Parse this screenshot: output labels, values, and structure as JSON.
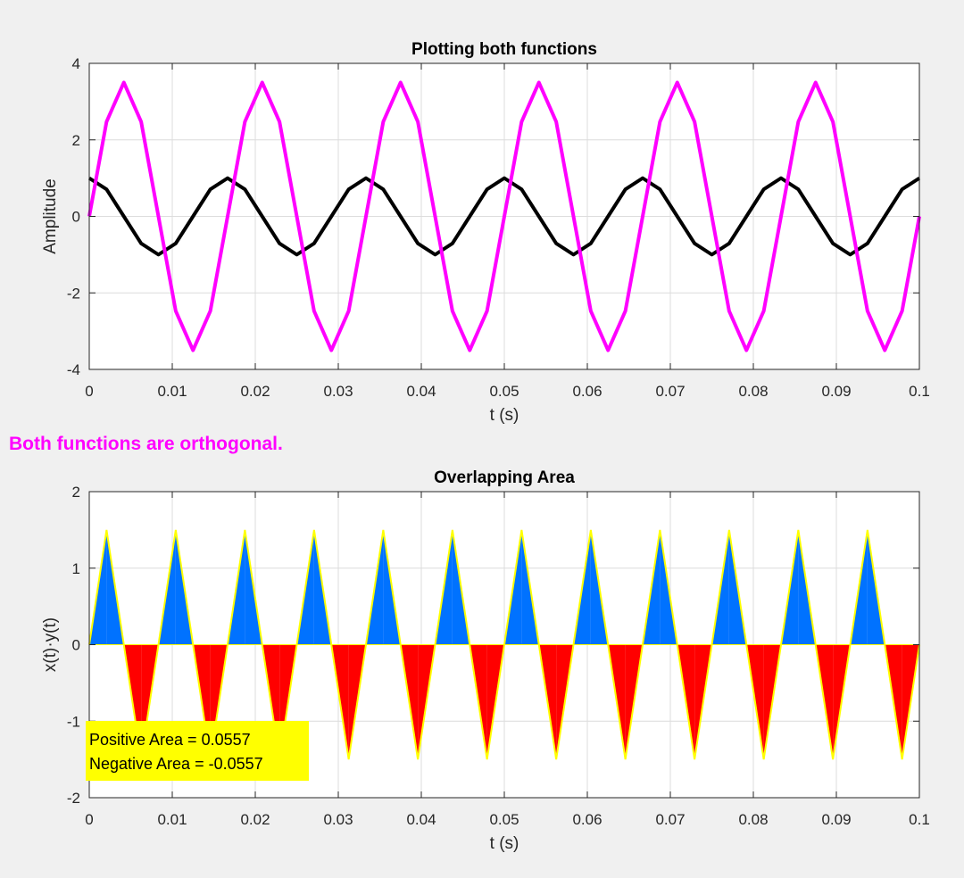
{
  "status_message": "Both functions are orthogonal.",
  "colors": {
    "status_text": "#ff00ff",
    "x_series": "#000000",
    "y_series": "#ff00ff",
    "positive_fill": "#0072ff",
    "negative_fill": "#ff0000",
    "fill_edge": "#ffff00",
    "annotation_bg": "#ffff00"
  },
  "area_annotation": {
    "positive": "Positive Area = 0.0557",
    "negative": "Negative Area = -0.0557"
  },
  "chart_data": [
    {
      "type": "line",
      "title": "Plotting both functions",
      "xlabel": "t (s)",
      "ylabel": "Amplitude",
      "xlim": [
        0,
        0.1
      ],
      "ylim": [
        -4,
        4
      ],
      "xticks": [
        "0",
        "0.01",
        "0.02",
        "0.03",
        "0.04",
        "0.05",
        "0.06",
        "0.07",
        "0.08",
        "0.09",
        "0.1"
      ],
      "yticks": [
        "-4",
        "-2",
        "0",
        "2",
        "4"
      ],
      "grid": true,
      "sample_step": 0.00208333,
      "series": [
        {
          "function": "cos",
          "amplitude": 1,
          "frequency_hz": 60,
          "color": "#000000"
        },
        {
          "function": "sin",
          "amplitude": 3.5,
          "frequency_hz": 60,
          "color": "#ff00ff"
        }
      ]
    },
    {
      "type": "area",
      "title": "Overlapping Area",
      "xlabel": "t (s)",
      "ylabel": "x(t)·y(t)",
      "xlim": [
        0,
        0.1
      ],
      "ylim": [
        -2,
        2
      ],
      "xticks": [
        "0",
        "0.01",
        "0.02",
        "0.03",
        "0.04",
        "0.05",
        "0.06",
        "0.07",
        "0.08",
        "0.09",
        "0.1"
      ],
      "yticks": [
        "-2",
        "-1",
        "0",
        "1",
        "2"
      ],
      "grid": true,
      "sample_step": 0.00208333,
      "series": [
        {
          "function": "product",
          "amplitude": 1.75,
          "frequency_hz": 120,
          "positive_color": "#0072ff",
          "negative_color": "#ff0000",
          "edge_color": "#ffff00"
        }
      ]
    }
  ]
}
